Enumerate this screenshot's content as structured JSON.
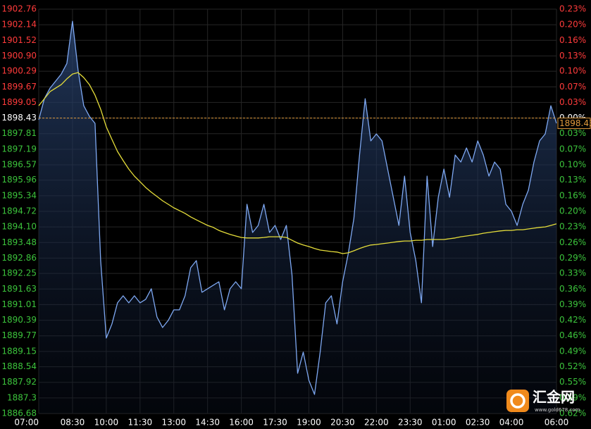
{
  "chart_data": {
    "type": "line",
    "reference": 1898.43,
    "up_color": "#ff3b3b",
    "down_color": "#3cc43c",
    "reference_color": "#e09a3c",
    "x": [
      "07:00",
      "07:15",
      "07:30",
      "07:45",
      "08:00",
      "08:15",
      "08:30",
      "08:45",
      "09:00",
      "09:15",
      "09:30",
      "09:45",
      "10:00",
      "10:15",
      "10:30",
      "10:45",
      "11:00",
      "11:15",
      "11:30",
      "11:45",
      "12:00",
      "12:15",
      "12:30",
      "12:45",
      "13:00",
      "13:15",
      "13:30",
      "13:45",
      "14:00",
      "14:15",
      "14:30",
      "14:45",
      "15:00",
      "15:15",
      "15:30",
      "15:45",
      "16:00",
      "16:15",
      "16:30",
      "16:45",
      "17:00",
      "17:15",
      "17:30",
      "17:45",
      "18:00",
      "18:15",
      "18:30",
      "18:45",
      "19:00",
      "19:15",
      "19:30",
      "19:45",
      "20:00",
      "20:15",
      "20:30",
      "20:45",
      "21:00",
      "21:15",
      "21:30",
      "21:45",
      "22:00",
      "22:15",
      "22:30",
      "22:45",
      "23:00",
      "23:15",
      "23:30",
      "23:45",
      "00:00",
      "00:15",
      "00:30",
      "00:45",
      "01:00",
      "01:15",
      "01:30",
      "01:45",
      "02:00",
      "02:15",
      "02:30",
      "02:45",
      "03:00",
      "03:15",
      "03:30",
      "03:45",
      "04:00",
      "04:15",
      "04:30",
      "04:45",
      "05:00",
      "05:15",
      "05:30",
      "05:45",
      "06:00"
    ],
    "series": [
      {
        "color": "#7ea8f2",
        "values": [
          1898.36,
          1899.2,
          1899.62,
          1899.9,
          1900.18,
          1900.6,
          1902.28,
          1900.32,
          1898.92,
          1898.5,
          1898.22,
          1892.76,
          1889.68,
          1890.24,
          1891.08,
          1891.36,
          1891.08,
          1891.36,
          1891.08,
          1891.22,
          1891.64,
          1890.52,
          1890.1,
          1890.38,
          1890.8,
          1890.8,
          1891.36,
          1892.48,
          1892.76,
          1891.5,
          1891.64,
          1891.78,
          1891.92,
          1890.8,
          1891.64,
          1891.92,
          1891.64,
          1895.0,
          1893.88,
          1894.16,
          1895.0,
          1893.88,
          1894.16,
          1893.6,
          1894.16,
          1892.2,
          1888.28,
          1889.12,
          1888.0,
          1887.44,
          1889.12,
          1891.08,
          1891.36,
          1890.24,
          1891.92,
          1893.04,
          1894.44,
          1896.96,
          1899.2,
          1897.52,
          1897.8,
          1897.52,
          1896.4,
          1895.28,
          1894.16,
          1896.12,
          1893.88,
          1892.76,
          1891.08,
          1896.12,
          1893.32,
          1895.28,
          1896.4,
          1895.28,
          1896.96,
          1896.68,
          1897.24,
          1896.68,
          1897.52,
          1896.96,
          1896.12,
          1896.68,
          1896.4,
          1895.0,
          1894.72,
          1894.16,
          1895.0,
          1895.56,
          1896.68,
          1897.52,
          1897.8,
          1898.92,
          1898.22
        ]
      },
      {
        "color": "#e6de3a",
        "values": [
          1898.92,
          1899.2,
          1899.48,
          1899.62,
          1899.76,
          1899.99,
          1900.18,
          1900.24,
          1900.04,
          1899.76,
          1899.34,
          1898.78,
          1898.08,
          1897.58,
          1897.1,
          1896.74,
          1896.4,
          1896.12,
          1895.9,
          1895.67,
          1895.48,
          1895.31,
          1895.14,
          1895.0,
          1894.86,
          1894.75,
          1894.64,
          1894.5,
          1894.38,
          1894.27,
          1894.16,
          1894.08,
          1893.96,
          1893.88,
          1893.8,
          1893.74,
          1893.68,
          1893.66,
          1893.66,
          1893.66,
          1893.68,
          1893.71,
          1893.71,
          1893.71,
          1893.68,
          1893.57,
          1893.46,
          1893.38,
          1893.32,
          1893.24,
          1893.18,
          1893.15,
          1893.12,
          1893.1,
          1893.04,
          1893.07,
          1893.15,
          1893.24,
          1893.32,
          1893.38,
          1893.4,
          1893.43,
          1893.46,
          1893.49,
          1893.52,
          1893.54,
          1893.54,
          1893.57,
          1893.57,
          1893.6,
          1893.6,
          1893.6,
          1893.6,
          1893.63,
          1893.66,
          1893.71,
          1893.74,
          1893.77,
          1893.8,
          1893.85,
          1893.88,
          1893.91,
          1893.94,
          1893.96,
          1893.96,
          1893.99,
          1893.99,
          1894.02,
          1894.05,
          1894.08,
          1894.1,
          1894.16,
          1894.22
        ]
      }
    ],
    "ylim": [
      1886.68,
      1902.76
    ],
    "yticks": [
      1902.76,
      1902.14,
      1901.52,
      {
        "value": 1900.9,
        "label": "1900.90"
      },
      1900.29,
      1899.67,
      1899.05,
      1898.43,
      1897.81,
      1897.19,
      1896.57,
      1895.96,
      1895.34,
      1894.72,
      {
        "value": 1894.1,
        "label": "1894.10"
      },
      1893.48,
      1892.86,
      1892.25,
      1891.63,
      1891.01,
      1890.39,
      1889.77,
      1889.15,
      1888.54,
      1887.92,
      1887.3,
      1886.68
    ],
    "y2lim": [
      -0.6189,
      0.2281
    ],
    "y2ticks": [
      {
        "value": 0.2281,
        "label": "0.23%"
      },
      {
        "value": 0.1954,
        "label": "0.20%"
      },
      {
        "value": 0.1628,
        "label": "0.16%"
      },
      {
        "value": 0.1301,
        "label": "0.13%"
      },
      {
        "value": 0.098,
        "label": "0.10%"
      },
      {
        "value": 0.0653,
        "label": "0.07%"
      },
      {
        "value": 0.0327,
        "label": "0.03%"
      },
      {
        "value": 0,
        "label": "0.00%"
      },
      {
        "value": -0.0327,
        "label": "0.03%"
      },
      {
        "value": -0.0653,
        "label": "0.07%"
      },
      {
        "value": -0.098,
        "label": "0.10%"
      },
      {
        "value": -0.1301,
        "label": "0.13%"
      },
      {
        "value": -0.1628,
        "label": "0.16%"
      },
      {
        "value": -0.1954,
        "label": "0.20%"
      },
      {
        "value": -0.2281,
        "label": "0.23%"
      },
      {
        "value": -0.2607,
        "label": "0.26%"
      },
      {
        "value": -0.2934,
        "label": "0.29%"
      },
      {
        "value": -0.3255,
        "label": "0.33%"
      },
      {
        "value": -0.3582,
        "label": "0.36%"
      },
      {
        "value": -0.3909,
        "label": "0.39%"
      },
      {
        "value": -0.4235,
        "label": "0.42%"
      },
      {
        "value": -0.4562,
        "label": "0.46%"
      },
      {
        "value": -0.4888,
        "label": "0.49%"
      },
      {
        "value": -0.521,
        "label": "0.52%"
      },
      {
        "value": -0.5536,
        "label": "0.55%"
      },
      {
        "value": -0.5863,
        "label": "0.59%"
      },
      {
        "value": -0.6189,
        "label": "0.62%"
      }
    ],
    "xticks": [
      "07:00",
      "08:30",
      "10:00",
      "11:30",
      "13:00",
      "14:30",
      "16:00",
      "17:30",
      "19:00",
      "20:30",
      "22:00",
      "23:30",
      "01:00",
      "02:30",
      "04:00",
      "06:00"
    ],
    "grid": true,
    "watermark": {
      "text": "汇金网",
      "url": "www.gold678.com"
    }
  }
}
